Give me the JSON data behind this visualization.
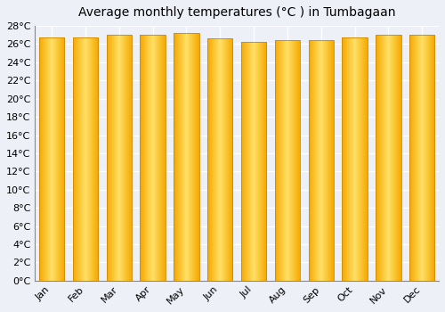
{
  "title": "Average monthly temperatures (°C ) in Tumbagaan",
  "months": [
    "Jan",
    "Feb",
    "Mar",
    "Apr",
    "May",
    "Jun",
    "Jul",
    "Aug",
    "Sep",
    "Oct",
    "Nov",
    "Dec"
  ],
  "values": [
    26.7,
    26.7,
    27.0,
    27.0,
    27.2,
    26.6,
    26.2,
    26.4,
    26.4,
    26.7,
    27.0,
    27.0
  ],
  "ylim": [
    0,
    28
  ],
  "ytick_step": 2,
  "bar_color_center": "#FFE066",
  "bar_color_edge": "#F5A800",
  "background_color": "#EEF0F8",
  "plot_bg_color": "#EEF0F8",
  "grid_color": "#FFFFFF",
  "title_fontsize": 10,
  "tick_fontsize": 8,
  "bar_width": 0.75,
  "gradient_steps": 100
}
